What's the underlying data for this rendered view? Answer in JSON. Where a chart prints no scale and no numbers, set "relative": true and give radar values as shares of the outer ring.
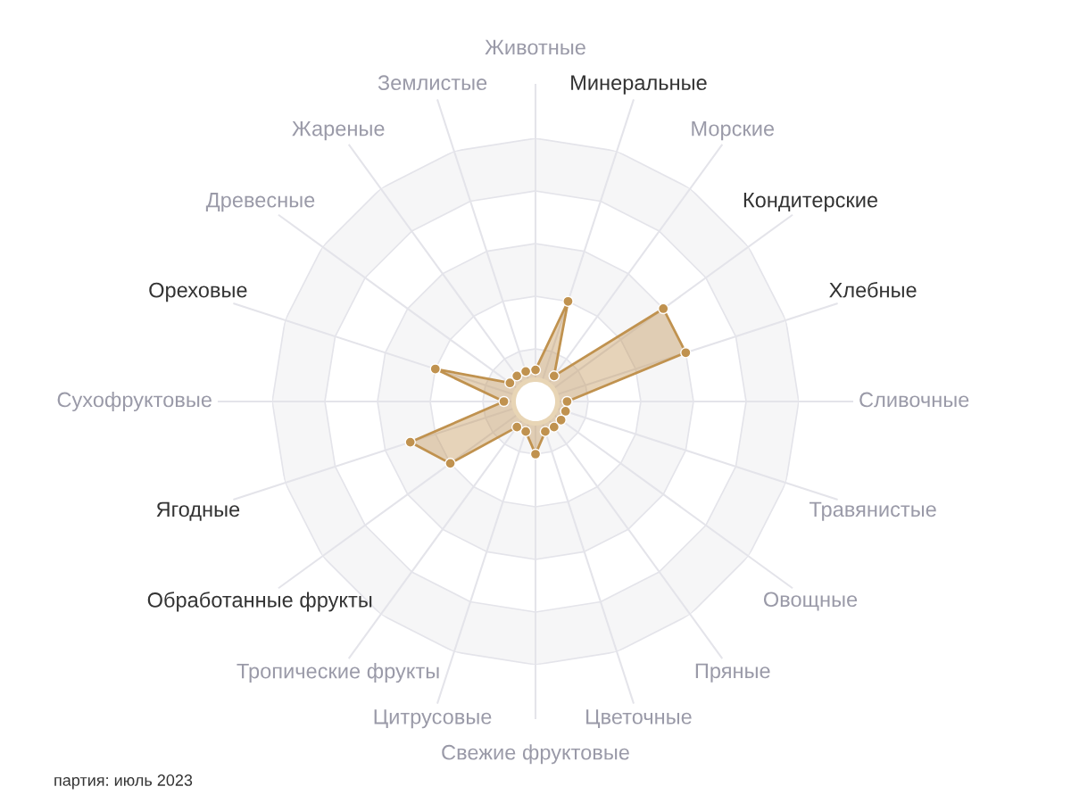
{
  "chart_data": {
    "type": "radar",
    "relative": true,
    "categories": [
      "Животные",
      "Минеральные",
      "Морские",
      "Кондитерские",
      "Хлебные",
      "Сливочные",
      "Травянистые",
      "Овощные",
      "Пряные",
      "Цветочные",
      "Свежие фруктовые",
      "Цитрусовые",
      "Тропические фрукты",
      "Обработанные фрукты",
      "Ягодные",
      "Сухофруктовые",
      "Ореховые",
      "Древесные",
      "Жареные",
      "Землистые"
    ],
    "colors": [
      "#9a9aa8",
      "#333333",
      "#9a9aa8",
      "#333333",
      "#333333",
      "#9a9aa8",
      "#9a9aa8",
      "#9a9aa8",
      "#9a9aa8",
      "#9a9aa8",
      "#9a9aa8",
      "#9a9aa8",
      "#9a9aa8",
      "#333333",
      "#333333",
      "#9a9aa8",
      "#333333",
      "#9a9aa8",
      "#9a9aa8",
      "#9a9aa8"
    ],
    "series": [
      {
        "color": "#c0924f",
        "values": [
          0.12,
          0.4,
          0.12,
          0.6,
          0.6,
          0.12,
          0.12,
          0.12,
          0.12,
          0.12,
          0.2,
          0.12,
          0.12,
          0.4,
          0.5,
          0.12,
          0.4,
          0.12,
          0.12,
          0.12
        ]
      }
    ],
    "grid": true,
    "marker": "circle",
    "annotations": [
      "партия: июль 2023"
    ]
  }
}
